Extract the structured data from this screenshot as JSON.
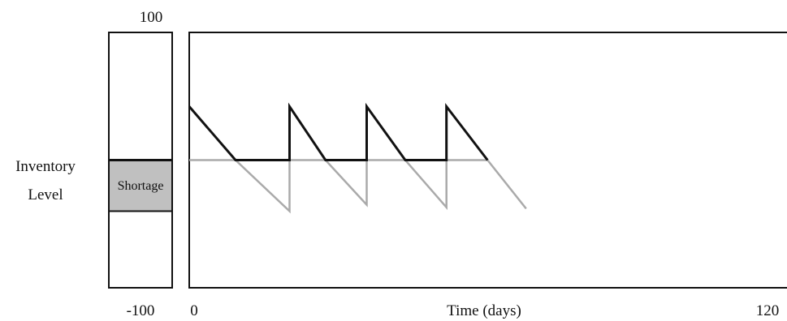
{
  "chart_data": {
    "type": "line",
    "ylabel": "Inventory Level",
    "xlabel": "Time (days)",
    "x_ticks": [
      "0",
      "120"
    ],
    "xlim": [
      0,
      120
    ],
    "gauge": {
      "top_label": "100",
      "bottom_label": "-100",
      "ylim": [
        -100,
        100
      ],
      "shortage_label": "Shortage",
      "shortage_range": [
        -40,
        0
      ],
      "shortage_color": "#c0c0c0"
    },
    "ylim": [
      -100,
      100
    ],
    "series": [
      {
        "color": "#111111",
        "points": [
          [
            0,
            42
          ],
          [
            9,
            0
          ],
          [
            19.5,
            0
          ],
          [
            19.5,
            42
          ],
          [
            26.5,
            0
          ],
          [
            34.5,
            0
          ],
          [
            34.5,
            42
          ],
          [
            42,
            0
          ],
          [
            50,
            0
          ],
          [
            50,
            42
          ],
          [
            58,
            0
          ]
        ]
      },
      {
        "color": "#aaaaaa",
        "points": [
          [
            0,
            0
          ],
          [
            9,
            0
          ],
          [
            19.5,
            -40
          ],
          [
            19.5,
            0
          ],
          [
            26.5,
            0
          ],
          [
            34.5,
            -35
          ],
          [
            34.5,
            0
          ],
          [
            42,
            0
          ],
          [
            50,
            -37
          ],
          [
            50,
            0
          ],
          [
            58,
            0
          ],
          [
            65.5,
            -38
          ]
        ]
      }
    ]
  }
}
